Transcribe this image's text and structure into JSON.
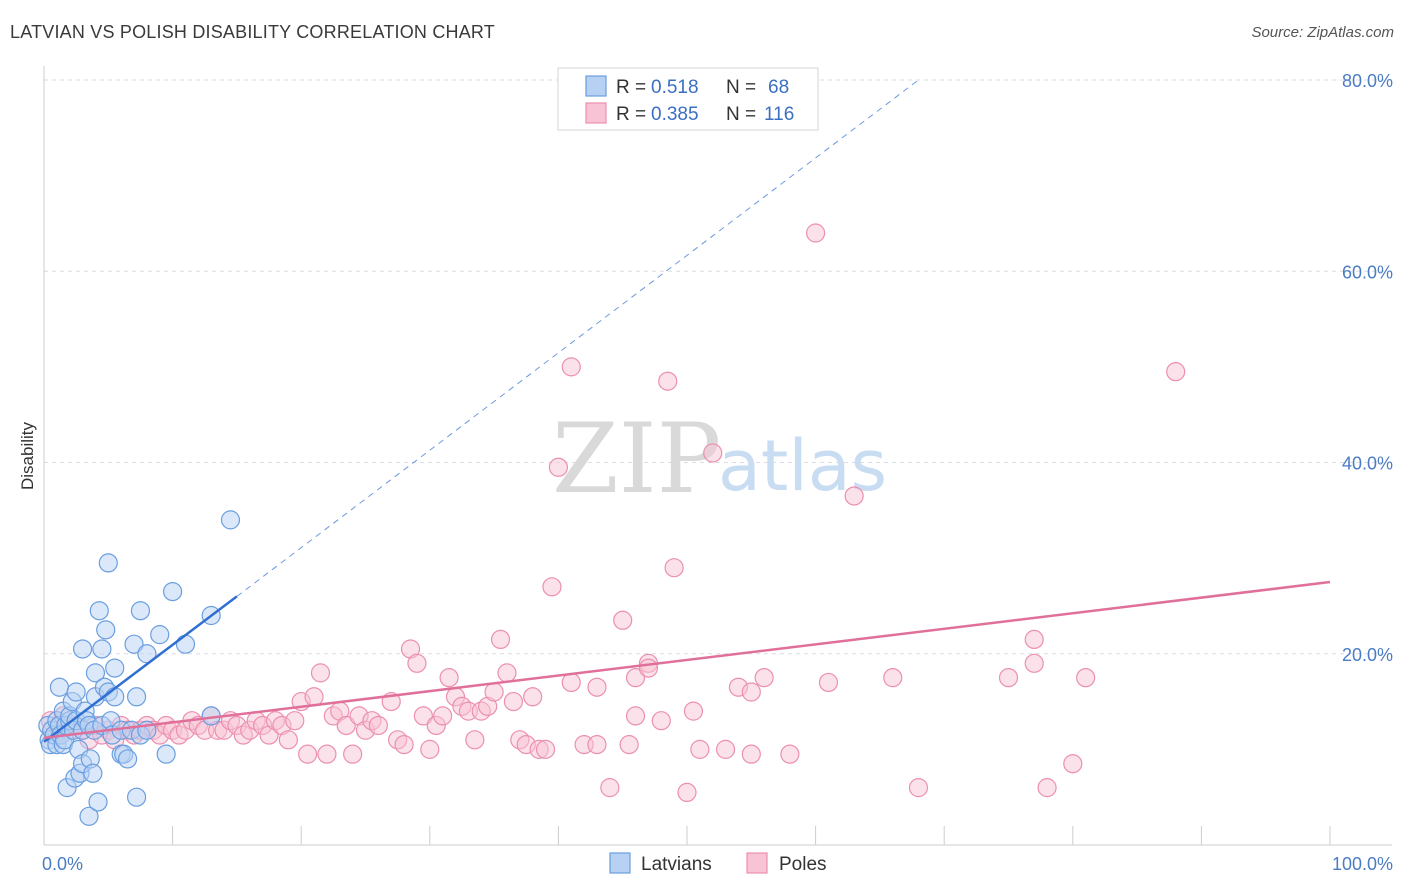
{
  "title": "LATVIAN VS POLISH DISABILITY CORRELATION CHART",
  "source": "Source: ZipAtlas.com",
  "watermark": {
    "zip": "ZIP",
    "atlas": "atlas"
  },
  "colors": {
    "blue_fill": "#b7d1f3",
    "blue_stroke": "#6a9ee0",
    "blue_line": "#2f6fd1",
    "pink_fill": "#f8c3d4",
    "pink_stroke": "#ec8fb0",
    "pink_line": "#e0709a",
    "grid": "#d9dce3",
    "tick_label": "#4a7cc4"
  },
  "chart_data": {
    "type": "scatter",
    "xlabel": "",
    "ylabel": "Disability",
    "xlim": [
      0,
      100
    ],
    "ylim": [
      0,
      80
    ],
    "x_tick_labels": [
      "0.0%",
      "100.0%"
    ],
    "y_ticks": [
      20,
      40,
      60,
      80
    ],
    "y_tick_labels": [
      "20.0%",
      "40.0%",
      "60.0%",
      "80.0%"
    ],
    "grid": true,
    "legend_position": "top-center",
    "series": [
      {
        "name": "Latvians",
        "R": "0.518",
        "N": "68",
        "trend": {
          "x1": 0,
          "y1": 10.8,
          "x2": 15,
          "y2": 26.0,
          "dashed_to_x": 68,
          "dashed_to_y": 80
        },
        "points": [
          [
            0.3,
            12.5
          ],
          [
            0.4,
            11
          ],
          [
            0.5,
            10.5
          ],
          [
            0.6,
            12
          ],
          [
            0.8,
            11.5
          ],
          [
            1.0,
            13
          ],
          [
            1.0,
            10.5
          ],
          [
            1.2,
            16.5
          ],
          [
            1.2,
            12.5
          ],
          [
            1.3,
            11.5
          ],
          [
            1.5,
            14
          ],
          [
            1.5,
            10.5
          ],
          [
            1.6,
            11
          ],
          [
            1.7,
            12.5
          ],
          [
            1.8,
            6
          ],
          [
            2.0,
            13
          ],
          [
            2.0,
            13.5
          ],
          [
            2.2,
            15
          ],
          [
            2.3,
            12
          ],
          [
            2.4,
            7
          ],
          [
            2.5,
            16
          ],
          [
            2.5,
            13
          ],
          [
            2.7,
            10
          ],
          [
            2.8,
            7.5
          ],
          [
            3.0,
            20.5
          ],
          [
            3.0,
            12
          ],
          [
            3.0,
            8.5
          ],
          [
            3.2,
            14
          ],
          [
            3.3,
            13
          ],
          [
            3.5,
            12.5
          ],
          [
            3.5,
            3
          ],
          [
            3.6,
            9
          ],
          [
            3.8,
            7.5
          ],
          [
            3.9,
            12
          ],
          [
            4.0,
            15.5
          ],
          [
            4.0,
            18
          ],
          [
            4.2,
            4.5
          ],
          [
            4.3,
            24.5
          ],
          [
            4.5,
            20.5
          ],
          [
            4.5,
            12.5
          ],
          [
            4.7,
            16.5
          ],
          [
            4.8,
            22.5
          ],
          [
            5.0,
            29.5
          ],
          [
            5.0,
            16
          ],
          [
            5.2,
            13
          ],
          [
            5.3,
            11.5
          ],
          [
            5.5,
            15.5
          ],
          [
            5.5,
            18.5
          ],
          [
            6.0,
            12
          ],
          [
            6.0,
            9.5
          ],
          [
            6.2,
            9.5
          ],
          [
            6.5,
            9
          ],
          [
            6.8,
            12
          ],
          [
            7.0,
            21
          ],
          [
            7.2,
            15.5
          ],
          [
            7.2,
            5
          ],
          [
            7.5,
            11.5
          ],
          [
            7.5,
            24.5
          ],
          [
            8.0,
            20
          ],
          [
            8.0,
            12
          ],
          [
            9.0,
            22
          ],
          [
            9.5,
            9.5
          ],
          [
            10.0,
            26.5
          ],
          [
            11.0,
            21
          ],
          [
            13.0,
            13.5
          ],
          [
            13.0,
            24
          ],
          [
            14.5,
            34
          ]
        ]
      },
      {
        "name": "Poles",
        "R": "0.385",
        "N": "116",
        "trend": {
          "x1": 0,
          "y1": 11.2,
          "x2": 100,
          "y2": 27.5
        },
        "points": [
          [
            0.5,
            13
          ],
          [
            1,
            11.5
          ],
          [
            1.2,
            12.5
          ],
          [
            1.5,
            13.5
          ],
          [
            2,
            12
          ],
          [
            2.5,
            12.5
          ],
          [
            3,
            12
          ],
          [
            3.5,
            11
          ],
          [
            4,
            12.5
          ],
          [
            4.5,
            11.5
          ],
          [
            5,
            12
          ],
          [
            5.5,
            11
          ],
          [
            6,
            12.5
          ],
          [
            6.5,
            12
          ],
          [
            7,
            11.5
          ],
          [
            7.5,
            12
          ],
          [
            8,
            12.5
          ],
          [
            8.5,
            12
          ],
          [
            9,
            11.5
          ],
          [
            9.5,
            12.5
          ],
          [
            10,
            12
          ],
          [
            10.5,
            11.5
          ],
          [
            11,
            12
          ],
          [
            11.5,
            13
          ],
          [
            12,
            12.5
          ],
          [
            12.5,
            12
          ],
          [
            13,
            13.5
          ],
          [
            13.5,
            12
          ],
          [
            14,
            12
          ],
          [
            14.5,
            13
          ],
          [
            15,
            12.5
          ],
          [
            15.5,
            11.5
          ],
          [
            16,
            12
          ],
          [
            16.5,
            13
          ],
          [
            17,
            12.5
          ],
          [
            17.5,
            11.5
          ],
          [
            18,
            13
          ],
          [
            18.5,
            12.5
          ],
          [
            19,
            11
          ],
          [
            19.5,
            13
          ],
          [
            20,
            15
          ],
          [
            20.5,
            9.5
          ],
          [
            21,
            15.5
          ],
          [
            21.5,
            18
          ],
          [
            22,
            9.5
          ],
          [
            22.5,
            13.5
          ],
          [
            23,
            14
          ],
          [
            23.5,
            12.5
          ],
          [
            24,
            9.5
          ],
          [
            24.5,
            13.5
          ],
          [
            25,
            12
          ],
          [
            25.5,
            13
          ],
          [
            26,
            12.5
          ],
          [
            27,
            15
          ],
          [
            27.5,
            11
          ],
          [
            28,
            10.5
          ],
          [
            28.5,
            20.5
          ],
          [
            29,
            19
          ],
          [
            29.5,
            13.5
          ],
          [
            30,
            10
          ],
          [
            30.5,
            12.5
          ],
          [
            31,
            13.5
          ],
          [
            31.5,
            17.5
          ],
          [
            32,
            15.5
          ],
          [
            32.5,
            14.5
          ],
          [
            33,
            14
          ],
          [
            33.5,
            11
          ],
          [
            34,
            14
          ],
          [
            34.5,
            14.5
          ],
          [
            35,
            16
          ],
          [
            35.5,
            21.5
          ],
          [
            36,
            18
          ],
          [
            36.5,
            15
          ],
          [
            37,
            11
          ],
          [
            37.5,
            10.5
          ],
          [
            38,
            15.5
          ],
          [
            38.5,
            10
          ],
          [
            39,
            10
          ],
          [
            39.5,
            27
          ],
          [
            40,
            39.5
          ],
          [
            41,
            17
          ],
          [
            41,
            50
          ],
          [
            42,
            10.5
          ],
          [
            43,
            16.5
          ],
          [
            43,
            10.5
          ],
          [
            44,
            6
          ],
          [
            45,
            23.5
          ],
          [
            45.5,
            10.5
          ],
          [
            46,
            17.5
          ],
          [
            46,
            13.5
          ],
          [
            47,
            19
          ],
          [
            47,
            18.5
          ],
          [
            48,
            13
          ],
          [
            48.5,
            48.5
          ],
          [
            49,
            29
          ],
          [
            50,
            5.5
          ],
          [
            50.5,
            14
          ],
          [
            51,
            10
          ],
          [
            52,
            41
          ],
          [
            53,
            10
          ],
          [
            54,
            16.5
          ],
          [
            55,
            16
          ],
          [
            55,
            9.5
          ],
          [
            56,
            17.5
          ],
          [
            58,
            9.5
          ],
          [
            60,
            64
          ],
          [
            61,
            17
          ],
          [
            63,
            36.5
          ],
          [
            66,
            17.5
          ],
          [
            68,
            6
          ],
          [
            75,
            17.5
          ],
          [
            77,
            19
          ],
          [
            77,
            21.5
          ],
          [
            78,
            6
          ],
          [
            80,
            8.5
          ],
          [
            81,
            17.5
          ],
          [
            88,
            49.5
          ]
        ]
      }
    ]
  },
  "legend": {
    "r_label": "R =",
    "n_label": "N ="
  }
}
